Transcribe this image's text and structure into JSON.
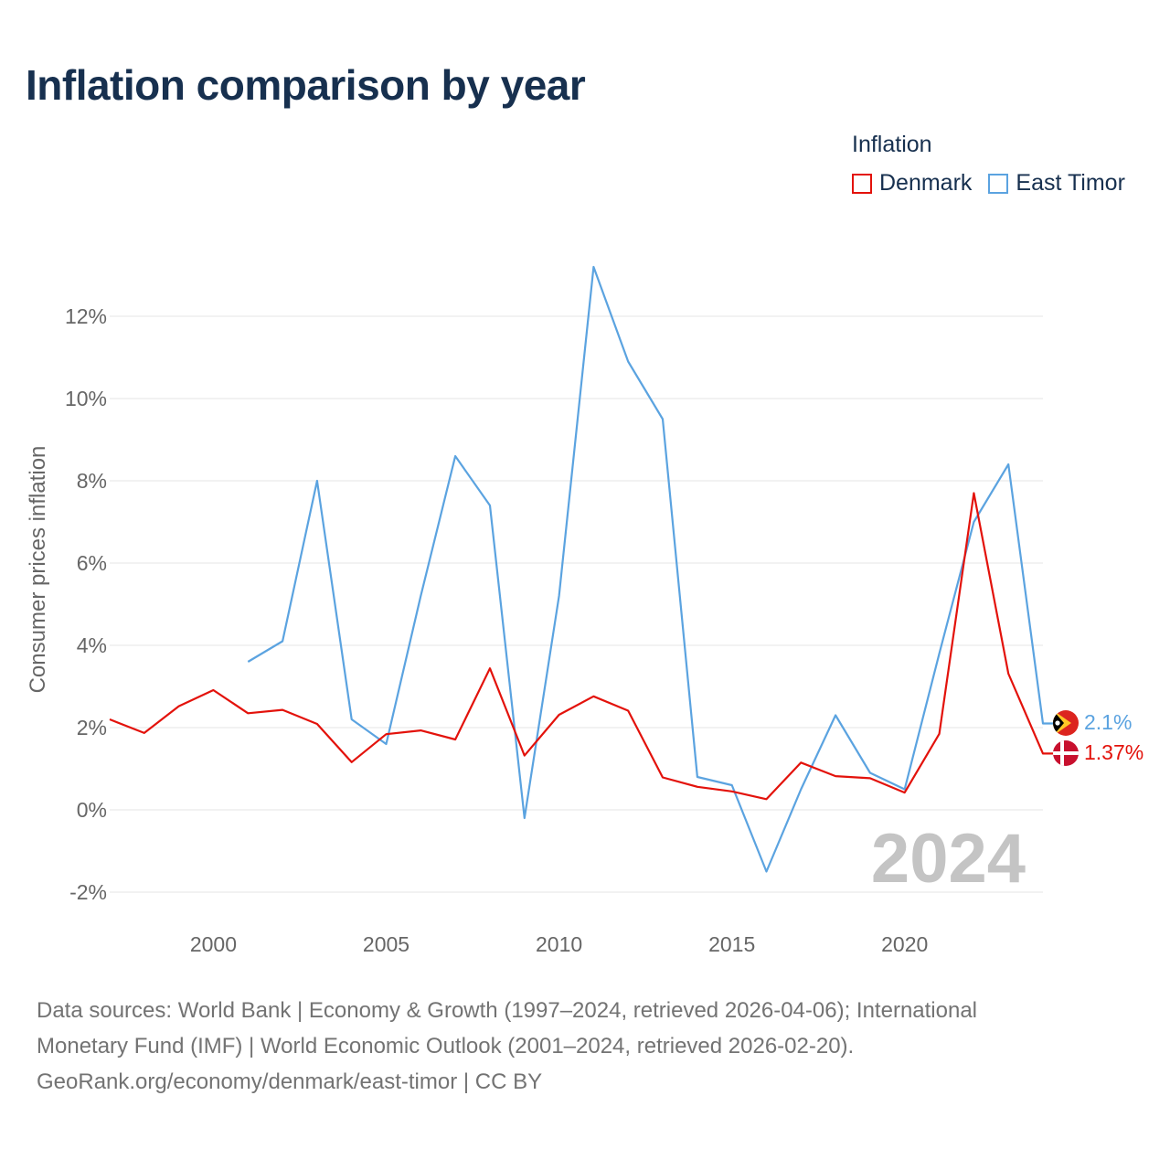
{
  "title": "Inflation comparison by year",
  "legend": {
    "title": "Inflation",
    "items": [
      {
        "label": "Denmark",
        "color": "#e3120b"
      },
      {
        "label": "East Timor",
        "color": "#5ba3e0"
      }
    ]
  },
  "watermark_year": "2024",
  "footer": {
    "line1": "Data sources: World Bank | Economy & Growth (1997–2024, retrieved 2026-04-06); International",
    "line2": "Monetary Fund (IMF) | World Economic Outlook (2001–2024, retrieved 2026-02-20).",
    "line3": "GeoRank.org/economy/denmark/east-timor | CC BY"
  },
  "chart_data": {
    "type": "line",
    "title": "Inflation comparison by year",
    "xlabel": "",
    "ylabel": "Consumer prices inflation",
    "xlim": [
      1997,
      2024
    ],
    "ylim": [
      -2.5,
      13.5
    ],
    "x_ticks": [
      2000,
      2005,
      2010,
      2015,
      2020
    ],
    "y_ticks": [
      -2,
      0,
      2,
      4,
      6,
      8,
      10,
      12
    ],
    "y_tick_labels": [
      "-2%",
      "0%",
      "2%",
      "4%",
      "6%",
      "8%",
      "10%",
      "12%"
    ],
    "grid": true,
    "legend_position": "top-right",
    "series": [
      {
        "name": "Denmark",
        "color": "#e3120b",
        "end_label": "1.37%",
        "points": [
          [
            1997,
            2.2
          ],
          [
            1998,
            1.87
          ],
          [
            1999,
            2.52
          ],
          [
            2000,
            2.91
          ],
          [
            2001,
            2.35
          ],
          [
            2002,
            2.43
          ],
          [
            2003,
            2.09
          ],
          [
            2004,
            1.16
          ],
          [
            2005,
            1.84
          ],
          [
            2006,
            1.93
          ],
          [
            2007,
            1.71
          ],
          [
            2008,
            3.44
          ],
          [
            2009,
            1.32
          ],
          [
            2010,
            2.31
          ],
          [
            2011,
            2.76
          ],
          [
            2012,
            2.41
          ],
          [
            2013,
            0.79
          ],
          [
            2014,
            0.56
          ],
          [
            2015,
            0.45
          ],
          [
            2016,
            0.26
          ],
          [
            2017,
            1.15
          ],
          [
            2018,
            0.82
          ],
          [
            2019,
            0.77
          ],
          [
            2020,
            0.42
          ],
          [
            2021,
            1.85
          ],
          [
            2022,
            7.7
          ],
          [
            2023,
            3.31
          ],
          [
            2024,
            1.37
          ]
        ]
      },
      {
        "name": "East Timor",
        "color": "#5ba3e0",
        "end_label": "2.1%",
        "points": [
          [
            2001,
            3.6
          ],
          [
            2002,
            4.1
          ],
          [
            2003,
            8.0
          ],
          [
            2004,
            2.2
          ],
          [
            2005,
            1.6
          ],
          [
            2006,
            5.2
          ],
          [
            2007,
            8.6
          ],
          [
            2008,
            7.4
          ],
          [
            2009,
            -0.2
          ],
          [
            2010,
            5.2
          ],
          [
            2011,
            13.2
          ],
          [
            2012,
            10.9
          ],
          [
            2013,
            9.5
          ],
          [
            2014,
            0.8
          ],
          [
            2015,
            0.6
          ],
          [
            2016,
            -1.5
          ],
          [
            2017,
            0.5
          ],
          [
            2018,
            2.3
          ],
          [
            2019,
            0.9
          ],
          [
            2020,
            0.5
          ],
          [
            2021,
            3.8
          ],
          [
            2022,
            7.0
          ],
          [
            2023,
            8.4
          ],
          [
            2024,
            2.1
          ]
        ]
      }
    ]
  }
}
